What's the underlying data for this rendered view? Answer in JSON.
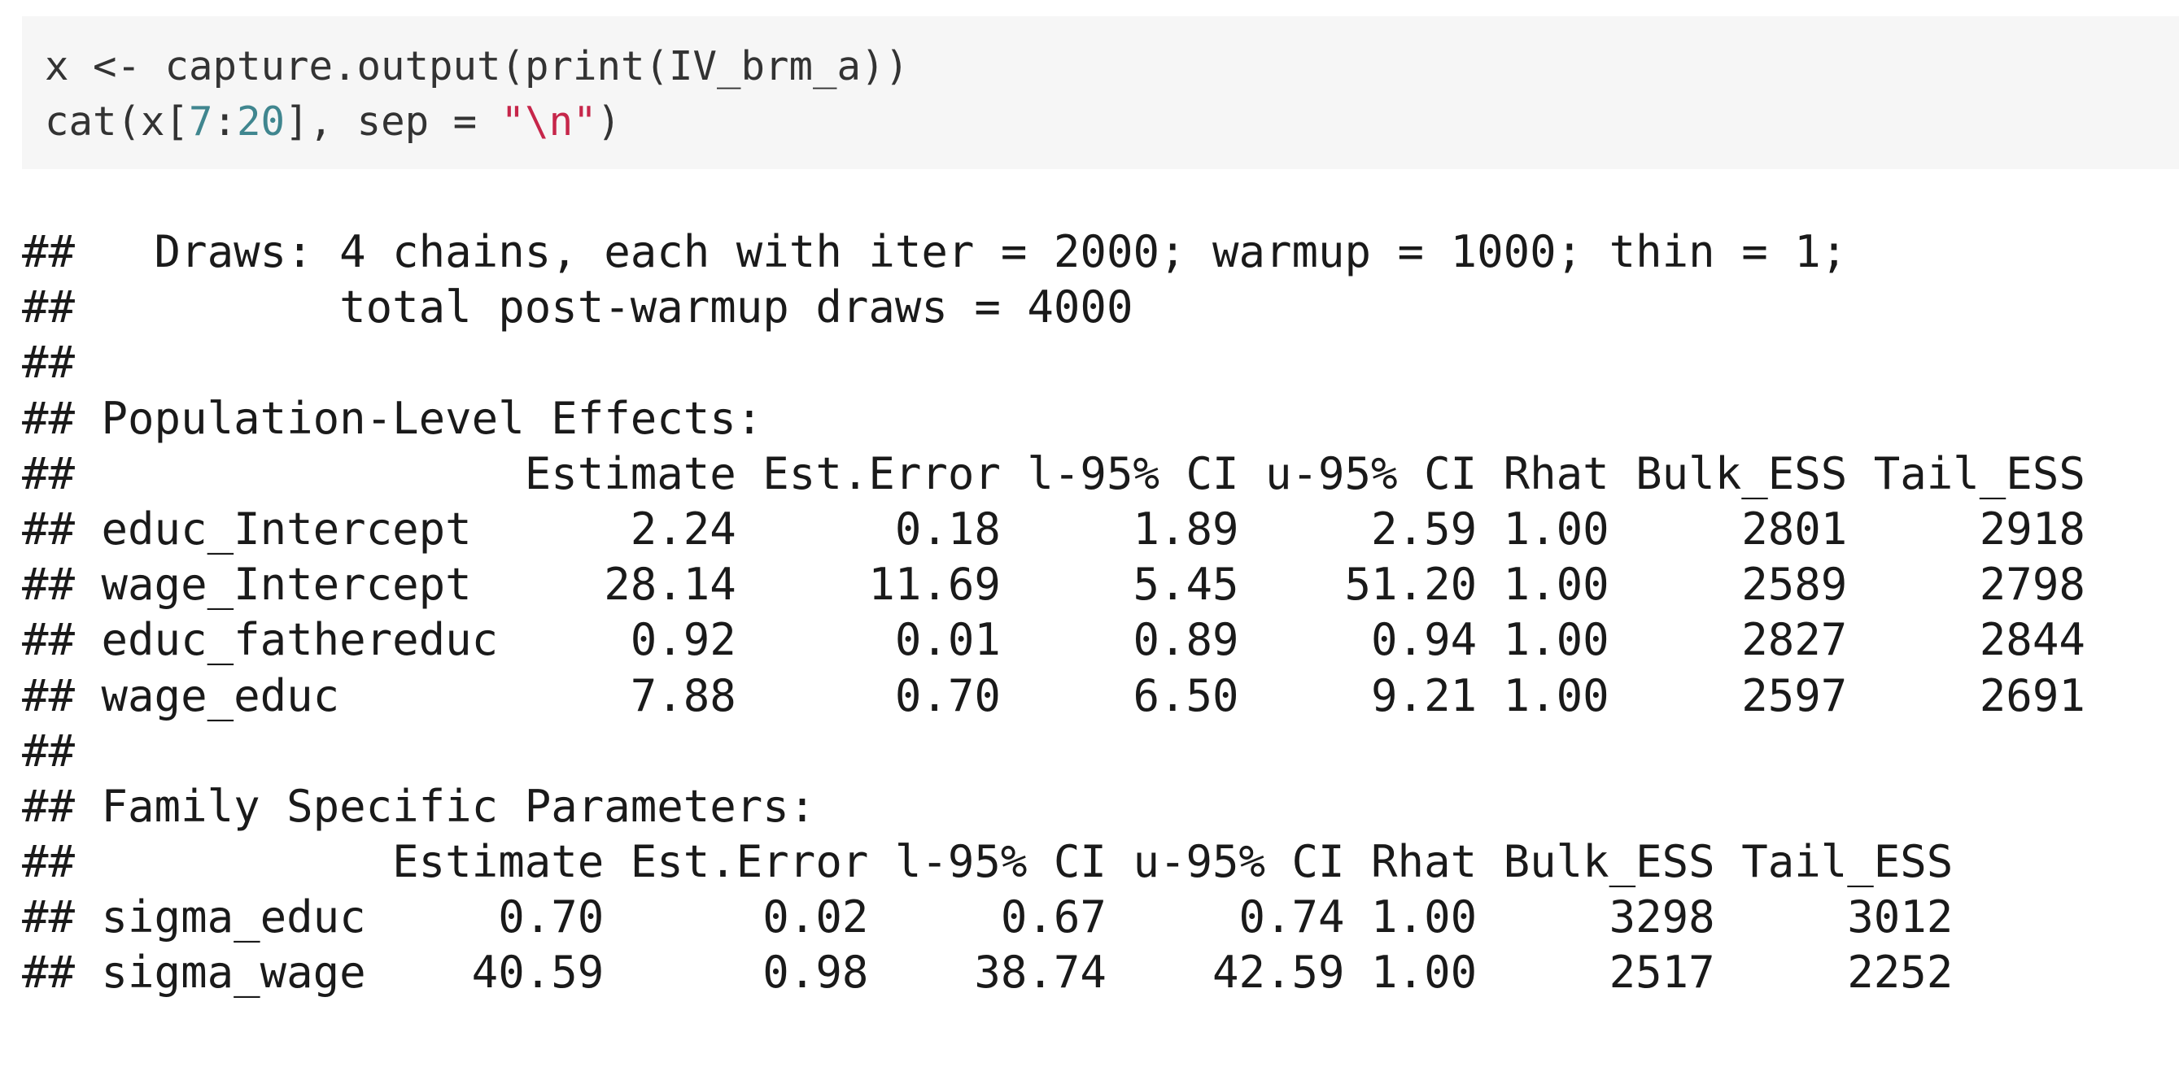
{
  "code": {
    "lines": [
      [
        {
          "text": "x <- capture.output(print(IV_brm_a))",
          "cls": "plain"
        }
      ],
      [
        {
          "text": "cat(x[",
          "cls": "plain"
        },
        {
          "text": "7",
          "cls": "num"
        },
        {
          "text": ":",
          "cls": "plain"
        },
        {
          "text": "20",
          "cls": "num"
        },
        {
          "text": "], sep = ",
          "cls": "plain"
        },
        {
          "text": "\"\\n\"",
          "cls": "str"
        },
        {
          "text": ")",
          "cls": "plain"
        }
      ]
    ]
  },
  "output": {
    "lines": [
      "##   Draws: 4 chains, each with iter = 2000; warmup = 1000; thin = 1;",
      "##          total post-warmup draws = 4000",
      "##",
      "## Population-Level Effects:",
      "##                 Estimate Est.Error l-95% CI u-95% CI Rhat Bulk_ESS Tail_ESS",
      "## educ_Intercept      2.24      0.18     1.89     2.59 1.00     2801     2918",
      "## wage_Intercept     28.14     11.69     5.45    51.20 1.00     2589     2798",
      "## educ_fathereduc     0.92      0.01     0.89     0.94 1.00     2827     2844",
      "## wage_educ           7.88      0.70     6.50     9.21 1.00     2597     2691",
      "##",
      "## Family Specific Parameters:",
      "##            Estimate Est.Error l-95% CI u-95% CI Rhat Bulk_ESS Tail_ESS",
      "## sigma_educ     0.70      0.02     0.67     0.74 1.00     3298     3012",
      "## sigma_wage    40.59      0.98    38.74    42.59 1.00     2517     2252"
    ]
  },
  "colors": {
    "code_background": "#f6f6f6",
    "code_text": "#333333",
    "number": "#40868f",
    "string": "#c6264a",
    "output_text": "#1a1a1a"
  }
}
